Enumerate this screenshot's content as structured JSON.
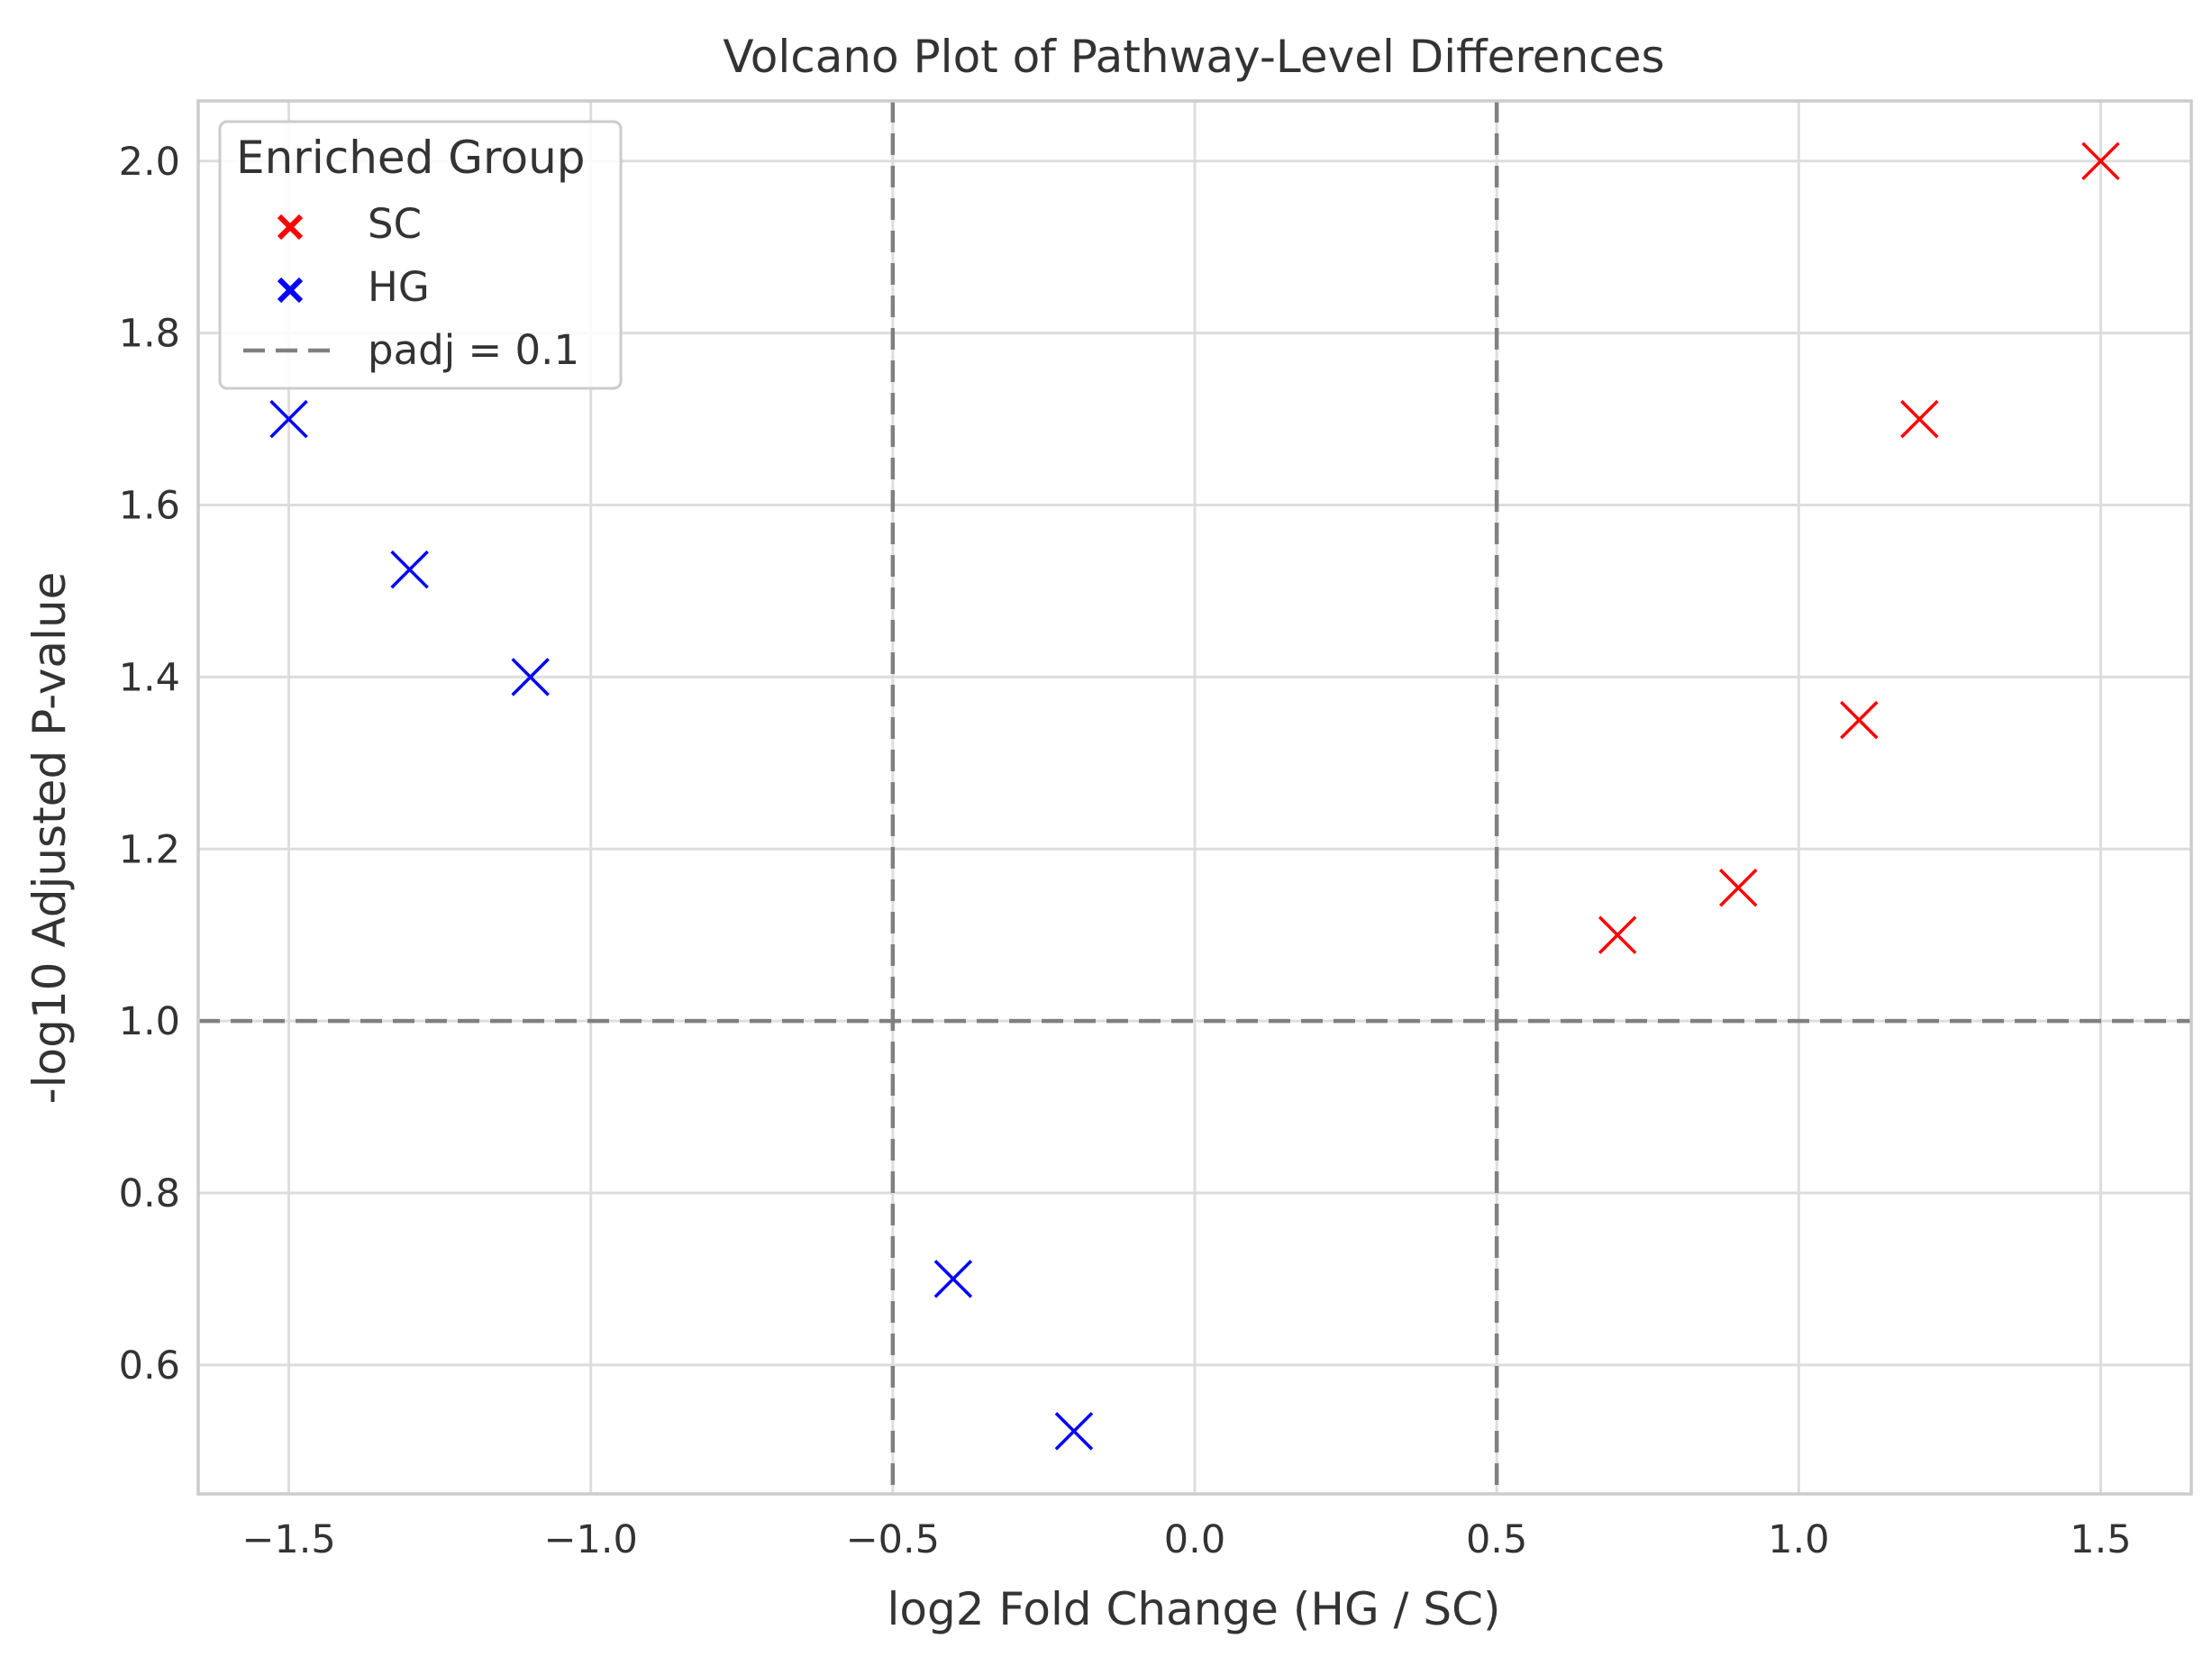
{
  "chart_data": {
    "type": "scatter",
    "title": "Volcano Plot of Pathway-Level Differences",
    "xlabel": "log2 Fold Change (HG / SC)",
    "ylabel": "-log10 Adjusted P-value",
    "xlim": [
      -1.65,
      1.65
    ],
    "ylim": [
      0.45,
      2.07
    ],
    "xticks": [
      -1.5,
      -1.0,
      -0.5,
      0.0,
      0.5,
      1.0,
      1.5
    ],
    "xtick_labels": [
      "−1.5",
      "−1.0",
      "−0.5",
      "0.0",
      "0.5",
      "1.0",
      "1.5"
    ],
    "yticks": [
      0.6,
      0.8,
      1.0,
      1.2,
      1.4,
      1.6,
      1.8,
      2.0
    ],
    "ytick_labels": [
      "0.6",
      "0.8",
      "1.0",
      "1.2",
      "1.4",
      "1.6",
      "1.8",
      "2.0"
    ],
    "grid": true,
    "legend": {
      "title": "Enriched Group",
      "position": "top-left",
      "entries": [
        {
          "label": "SC",
          "marker": "x",
          "color": "#ff0000"
        },
        {
          "label": "HG",
          "marker": "x",
          "color": "#0000ff"
        },
        {
          "label": "padj = 0.1",
          "marker": "dashed-line",
          "color": "#808080"
        }
      ]
    },
    "thresholds": {
      "vertical_x": [
        -0.5,
        0.5
      ],
      "horizontal_y": 1.0,
      "color": "#808080"
    },
    "series": [
      {
        "name": "SC",
        "color": "#ff0000",
        "points": [
          {
            "x": 0.7,
            "y": 1.1
          },
          {
            "x": 0.9,
            "y": 1.155
          },
          {
            "x": 1.1,
            "y": 1.35
          },
          {
            "x": 1.2,
            "y": 1.7
          },
          {
            "x": 1.5,
            "y": 2.0
          }
        ]
      },
      {
        "name": "HG",
        "color": "#0000ff",
        "points": [
          {
            "x": -1.5,
            "y": 1.7
          },
          {
            "x": -1.3,
            "y": 1.525
          },
          {
            "x": -1.1,
            "y": 1.4
          },
          {
            "x": -0.4,
            "y": 0.7
          },
          {
            "x": -0.2,
            "y": 0.523
          }
        ]
      }
    ]
  }
}
